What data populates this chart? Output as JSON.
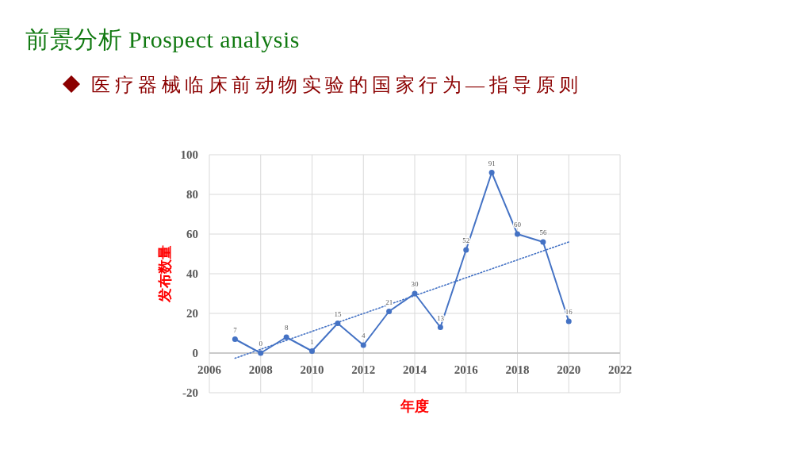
{
  "chart_data": {
    "type": "line",
    "title": "前景分析 Prospect analysis",
    "subtitle": "医疗器械临床前动物实验的国家行为—指导原则",
    "xlabel": "年度",
    "ylabel": "发布数量",
    "x": [
      2007,
      2008,
      2009,
      2010,
      2011,
      2012,
      2013,
      2014,
      2015,
      2016,
      2017,
      2018,
      2019,
      2020
    ],
    "series": [
      {
        "color": "#4472c4",
        "marker": "circle",
        "line_style": "solid",
        "values": [
          7,
          0,
          8,
          1,
          15,
          4,
          21,
          30,
          13,
          52,
          91,
          60,
          56,
          16
        ],
        "value_labels": [
          "7",
          "0",
          "8",
          "1",
          "15",
          "4",
          "21",
          "30",
          "13",
          "52",
          "91",
          "60",
          "56",
          "16"
        ]
      },
      {
        "type": "line",
        "color": "#4472c4",
        "marker": "none",
        "line_style": "dotted",
        "x": [
          2007,
          2020
        ],
        "values": [
          -2.6,
          56
        ]
      }
    ],
    "xlim": [
      2006,
      2022
    ],
    "ylim": [
      -20,
      100
    ],
    "xticks": [
      2006,
      2008,
      2010,
      2012,
      2014,
      2016,
      2018,
      2020,
      2022
    ],
    "yticks": [
      -20,
      0,
      20,
      40,
      60,
      80,
      100
    ],
    "grid": true
  }
}
